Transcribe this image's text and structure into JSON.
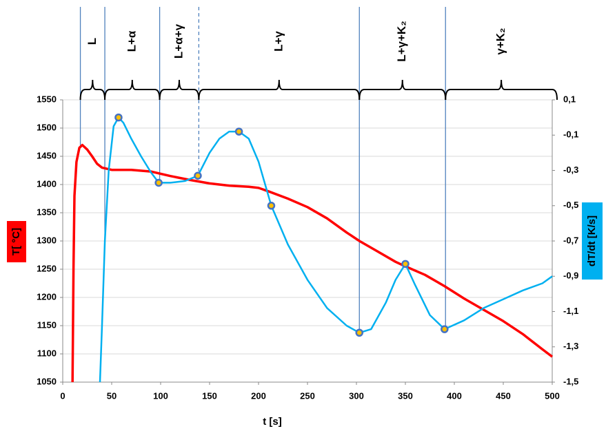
{
  "chart_data": {
    "type": "line",
    "xlabel": "t [s]",
    "ylabel": "T[ °C]",
    "y2label": "dT/dt [K/s]",
    "xlim": [
      0,
      500
    ],
    "xticks": [
      0,
      50,
      100,
      150,
      200,
      250,
      300,
      350,
      400,
      450,
      500
    ],
    "ylim": [
      1050,
      1550
    ],
    "yticks": [
      1050,
      1100,
      1150,
      1200,
      1250,
      1300,
      1350,
      1400,
      1450,
      1500,
      1550
    ],
    "y2lim": [
      -1.5,
      0.1
    ],
    "y2ticks": [
      {
        "value": -1.5,
        "label": "-1,5"
      },
      {
        "value": -1.3,
        "label": "-1,3"
      },
      {
        "value": -1.1,
        "label": "-1,1"
      },
      {
        "value": -0.9,
        "label": "-0,9"
      },
      {
        "value": -0.7,
        "label": "-0,7"
      },
      {
        "value": -0.5,
        "label": "-0,5"
      },
      {
        "value": -0.3,
        "label": "-0,3"
      },
      {
        "value": -0.1,
        "label": "-0,1"
      },
      {
        "value": 0.1,
        "label": "0,1"
      }
    ],
    "grid": true,
    "series": [
      {
        "color": "#ff0000",
        "x": [
          10,
          11,
          12,
          14,
          17,
          20,
          25,
          30,
          35,
          40,
          50,
          70,
          90,
          110,
          130,
          150,
          170,
          190,
          200,
          210,
          230,
          250,
          270,
          290,
          303,
          320,
          340,
          350,
          370,
          390,
          410,
          430,
          450,
          470,
          490,
          500
        ],
        "values": [
          1050,
          1250,
          1380,
          1440,
          1465,
          1470,
          1462,
          1450,
          1437,
          1430,
          1426,
          1426,
          1423,
          1415,
          1408,
          1402,
          1398,
          1396,
          1394,
          1388,
          1375,
          1360,
          1340,
          1315,
          1300,
          1283,
          1263,
          1255,
          1240,
          1220,
          1198,
          1178,
          1158,
          1135,
          1108,
          1095
        ]
      },
      {
        "color": "#00b0f0",
        "axis": "y2",
        "x": [
          38,
          40,
          43,
          47,
          52,
          57,
          62,
          70,
          80,
          90,
          98,
          110,
          125,
          138,
          150,
          160,
          170,
          180,
          190,
          200,
          213,
          230,
          250,
          270,
          290,
          303,
          315,
          330,
          340,
          350,
          360,
          375,
          390,
          410,
          430,
          450,
          470,
          490,
          500
        ],
        "values": [
          -1.5,
          -1.2,
          -0.7,
          -0.3,
          -0.05,
          0.0,
          -0.03,
          -0.12,
          -0.22,
          -0.31,
          -0.37,
          -0.37,
          -0.36,
          -0.33,
          -0.2,
          -0.12,
          -0.08,
          -0.08,
          -0.12,
          -0.25,
          -0.5,
          -0.72,
          -0.92,
          -1.08,
          -1.18,
          -1.22,
          -1.2,
          -1.05,
          -0.92,
          -0.83,
          -0.95,
          -1.12,
          -1.2,
          -1.15,
          -1.08,
          -1.03,
          -0.98,
          -0.94,
          -0.9
        ]
      },
      {
        "color": "#ffc000",
        "edge_color": "#4472c4",
        "axis": "y2",
        "marker": true,
        "x": [
          57,
          98,
          138,
          180,
          213,
          303,
          350,
          390
        ],
        "values": [
          0.0,
          -0.37,
          -0.33,
          -0.08,
          -0.5,
          -1.22,
          -0.83,
          -1.2
        ]
      }
    ],
    "phase_boundaries": [
      {
        "x": 18,
        "dashed": false
      },
      {
        "x": 43,
        "dashed": false
      },
      {
        "x": 99,
        "dashed": false
      },
      {
        "x": 139,
        "dashed": true
      },
      {
        "x": 303,
        "dashed": false
      },
      {
        "x": 391,
        "dashed": false
      }
    ],
    "phases": [
      "L",
      "L+α",
      "L+α+γ",
      "L+γ",
      "L+γ+K₂",
      "γ+K₂"
    ]
  }
}
